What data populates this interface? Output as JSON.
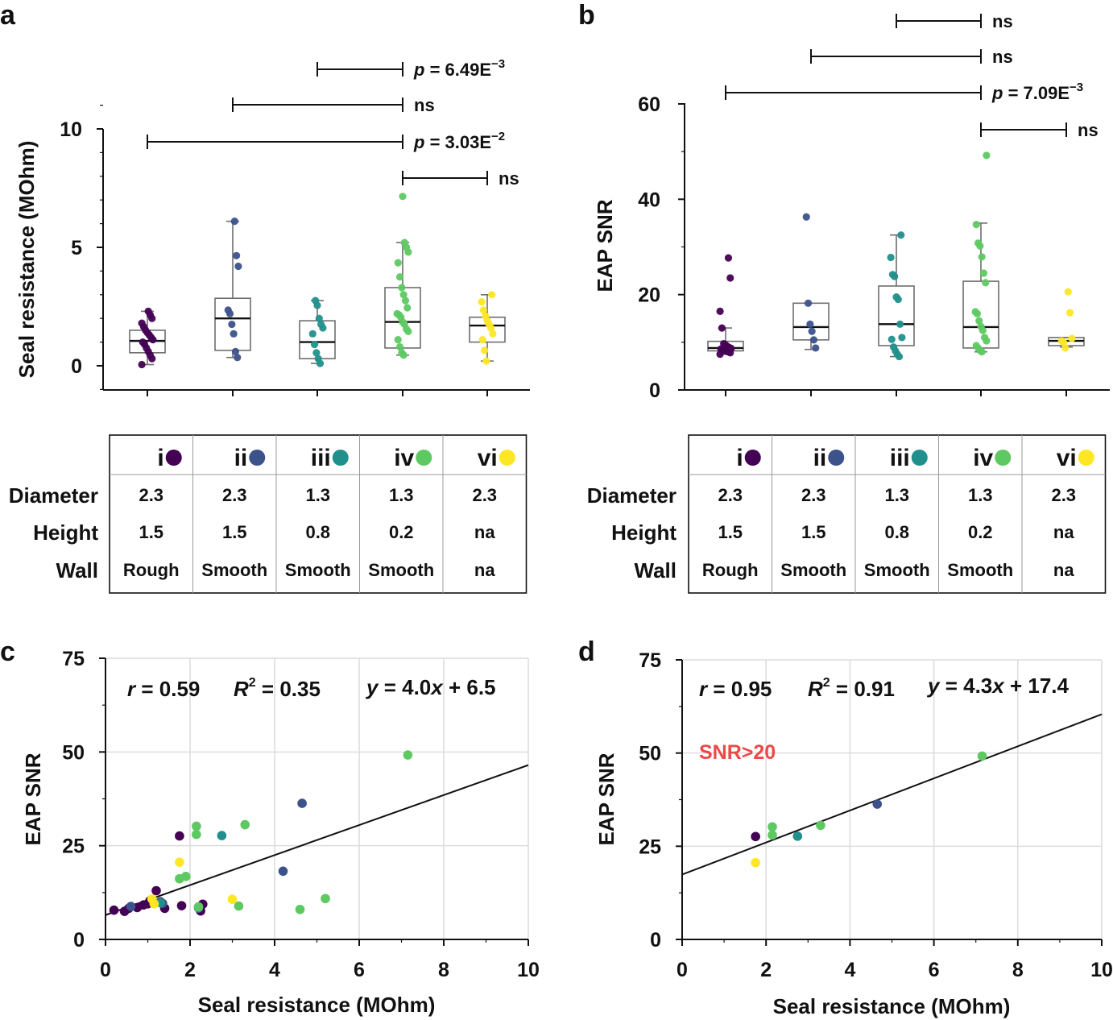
{
  "panel_letters": [
    "a",
    "b",
    "c",
    "d"
  ],
  "groups": [
    {
      "key": "i",
      "color": "#440154"
    },
    {
      "key": "ii",
      "color": "#3b528b"
    },
    {
      "key": "iii",
      "color": "#21908c"
    },
    {
      "key": "iv",
      "color": "#5ec962"
    },
    {
      "key": "vi",
      "color": "#fde725"
    }
  ],
  "specs_table": {
    "row_labels": [
      "Diameter",
      "Height",
      "Wall"
    ],
    "rows": [
      [
        "2.3",
        "2.3",
        "1.3",
        "1.3",
        "2.3"
      ],
      [
        "1.5",
        "1.5",
        "0.8",
        "0.2",
        "na"
      ],
      [
        "Rough",
        "Smooth",
        "Smooth",
        "Smooth",
        "na"
      ]
    ]
  },
  "chart_data": [
    {
      "panel": "a",
      "type": "box",
      "ylabel": "Seal resistance (MOhm)",
      "ylim": [
        -1,
        11
      ],
      "yticks": [
        0,
        5,
        10
      ],
      "categories": [
        "i",
        "ii",
        "iii",
        "iv",
        "vi"
      ],
      "boxes": [
        {
          "whislo": 0.05,
          "q1": 0.55,
          "med": 1.05,
          "q3": 1.5,
          "whishi": 2.3
        },
        {
          "whislo": 0.35,
          "q1": 0.65,
          "med": 2.0,
          "q3": 2.85,
          "whishi": 6.1
        },
        {
          "whislo": 0.1,
          "q1": 0.3,
          "med": 1.0,
          "q3": 1.9,
          "whishi": 2.75
        },
        {
          "whislo": 0.45,
          "q1": 0.75,
          "med": 1.85,
          "q3": 3.3,
          "whishi": 5.2
        },
        {
          "whislo": 0.2,
          "q1": 1.0,
          "med": 1.7,
          "q3": 2.05,
          "whishi": 3.0
        }
      ],
      "points": [
        [
          0.05,
          0.3,
          0.45,
          0.6,
          0.75,
          0.9,
          1.0,
          1.1,
          1.2,
          1.3,
          1.4,
          1.5,
          1.65,
          1.8,
          2.0,
          2.15,
          2.3
        ],
        [
          0.35,
          0.6,
          1.35,
          1.75,
          2.2,
          2.35,
          4.2,
          4.65,
          6.1
        ],
        [
          0.1,
          0.3,
          0.55,
          0.9,
          1.35,
          1.6,
          1.75,
          2.0,
          2.55,
          2.75
        ],
        [
          0.45,
          0.55,
          0.8,
          1.1,
          1.45,
          1.55,
          1.75,
          1.85,
          2.05,
          2.15,
          2.2,
          2.45,
          2.75,
          3.0,
          3.3,
          3.75,
          4.35,
          4.8,
          5.0,
          5.2,
          7.15
        ],
        [
          0.2,
          0.65,
          1.1,
          1.35,
          1.6,
          1.75,
          1.9,
          2.1,
          2.35,
          2.7,
          3.0
        ]
      ],
      "brackets": [
        {
          "from": "iii",
          "to": "iv",
          "label": "p = 6.49E",
          "exp": "−3"
        },
        {
          "from": "ii",
          "to": "iv",
          "label": "ns",
          "exp": ""
        },
        {
          "from": "i",
          "to": "iv",
          "label": "p = 3.03E",
          "exp": "−2"
        },
        {
          "from": "iv",
          "to": "vi",
          "label": "ns",
          "exp": ""
        }
      ]
    },
    {
      "panel": "b",
      "type": "box",
      "ylabel": "EAP SNR",
      "ylim": [
        0,
        60
      ],
      "yticks": [
        0,
        20,
        40,
        60
      ],
      "categories": [
        "i",
        "ii",
        "iii",
        "iv",
        "vi"
      ],
      "boxes": [
        {
          "whislo": 7.5,
          "q1": 8.2,
          "med": 8.8,
          "q3": 10.2,
          "whishi": 13
        },
        {
          "whislo": 8.5,
          "q1": 10.5,
          "med": 13.2,
          "q3": 18.2,
          "whishi": 18.2
        },
        {
          "whislo": 7.0,
          "q1": 9.3,
          "med": 13.8,
          "q3": 21.8,
          "whishi": 32.5
        },
        {
          "whislo": 8.0,
          "q1": 8.8,
          "med": 13.2,
          "q3": 22.8,
          "whishi": 35.0
        },
        {
          "whislo": 9.0,
          "q1": 9.3,
          "med": 10.3,
          "q3": 11.0,
          "whishi": 11.0
        }
      ],
      "points": [
        [
          7.5,
          7.8,
          8.0,
          8.1,
          8.3,
          8.5,
          8.6,
          8.7,
          8.9,
          9.1,
          9.4,
          9.7,
          13.0,
          16.5,
          23.5,
          27.7
        ],
        [
          8.8,
          10.5,
          12.3,
          13.8,
          18.2,
          36.3
        ],
        [
          7.0,
          7.5,
          8.2,
          9.0,
          10.6,
          11.0,
          13.8,
          19.0,
          19.5,
          23.8,
          24.2,
          27.8,
          32.5
        ],
        [
          8.0,
          8.3,
          8.8,
          9.3,
          10.3,
          11.0,
          12.5,
          13.3,
          14.5,
          16.0,
          16.4,
          22.5,
          24.5,
          27.9,
          30.2,
          30.8,
          34.7,
          49.2
        ],
        [
          8.8,
          10.0,
          10.3,
          10.8,
          16.2,
          20.6
        ]
      ],
      "brackets": [
        {
          "from": "iii",
          "to": "iv",
          "label": "ns",
          "exp": ""
        },
        {
          "from": "ii",
          "to": "iv",
          "label": "ns",
          "exp": ""
        },
        {
          "from": "i",
          "to": "iv",
          "label": "p = 7.09E",
          "exp": "−3"
        },
        {
          "from": "iv",
          "to": "vi",
          "label": "ns",
          "exp": ""
        }
      ]
    },
    {
      "panel": "c",
      "type": "scatter",
      "xlabel": "Seal resistance (MOhm)",
      "ylabel": "EAP SNR",
      "xlim": [
        0,
        10
      ],
      "ylim": [
        0,
        75
      ],
      "xticks": [
        0,
        2,
        4,
        6,
        8,
        10
      ],
      "yticks": [
        0,
        25,
        50,
        75
      ],
      "stats": {
        "r": "0.59",
        "R2": "0.35",
        "eq_slope": "4.0",
        "eq_intercept": "6.5"
      },
      "fit": {
        "slope": 4.0,
        "intercept": 6.5
      },
      "note": "",
      "points": [
        {
          "x": 0.2,
          "y": 7.8,
          "g": 0
        },
        {
          "x": 0.45,
          "y": 7.5,
          "g": 0
        },
        {
          "x": 0.55,
          "y": 8.3,
          "g": 0
        },
        {
          "x": 0.75,
          "y": 8.5,
          "g": 0
        },
        {
          "x": 0.9,
          "y": 9.2,
          "g": 0
        },
        {
          "x": 1.0,
          "y": 9.5,
          "g": 0
        },
        {
          "x": 1.05,
          "y": 10.3,
          "g": 0
        },
        {
          "x": 1.2,
          "y": 13.0,
          "g": 0
        },
        {
          "x": 1.3,
          "y": 10.0,
          "g": 0
        },
        {
          "x": 1.4,
          "y": 8.3,
          "g": 0
        },
        {
          "x": 1.75,
          "y": 27.6,
          "g": 0
        },
        {
          "x": 1.8,
          "y": 9.0,
          "g": 0
        },
        {
          "x": 2.25,
          "y": 7.6,
          "g": 0
        },
        {
          "x": 2.3,
          "y": 9.4,
          "g": 0
        },
        {
          "x": 0.6,
          "y": 8.8,
          "g": 1
        },
        {
          "x": 1.35,
          "y": 9.6,
          "g": 1
        },
        {
          "x": 4.2,
          "y": 18.2,
          "g": 1
        },
        {
          "x": 4.65,
          "y": 36.3,
          "g": 1
        },
        {
          "x": 1.3,
          "y": 9.8,
          "g": 2
        },
        {
          "x": 2.2,
          "y": 8.4,
          "g": 2
        },
        {
          "x": 2.75,
          "y": 27.7,
          "g": 2
        },
        {
          "x": 1.75,
          "y": 16.2,
          "g": 3
        },
        {
          "x": 1.9,
          "y": 16.8,
          "g": 3
        },
        {
          "x": 2.15,
          "y": 28.0,
          "g": 3
        },
        {
          "x": 2.15,
          "y": 30.2,
          "g": 3
        },
        {
          "x": 2.2,
          "y": 8.7,
          "g": 3
        },
        {
          "x": 3.15,
          "y": 8.9,
          "g": 3
        },
        {
          "x": 3.3,
          "y": 30.6,
          "g": 3
        },
        {
          "x": 4.6,
          "y": 8.0,
          "g": 3
        },
        {
          "x": 5.2,
          "y": 10.9,
          "g": 3
        },
        {
          "x": 7.15,
          "y": 49.2,
          "g": 3
        },
        {
          "x": 1.1,
          "y": 10.8,
          "g": 4
        },
        {
          "x": 1.15,
          "y": 9.5,
          "g": 4
        },
        {
          "x": 1.75,
          "y": 20.6,
          "g": 4
        },
        {
          "x": 3.0,
          "y": 10.7,
          "g": 4
        }
      ]
    },
    {
      "panel": "d",
      "type": "scatter",
      "xlabel": "Seal resistance (MOhm)",
      "ylabel": "EAP SNR",
      "xlim": [
        0,
        10
      ],
      "ylim": [
        0,
        75
      ],
      "xticks": [
        0,
        2,
        4,
        6,
        8,
        10
      ],
      "yticks": [
        0,
        25,
        50,
        75
      ],
      "stats": {
        "r": "0.95",
        "R2": "0.91",
        "eq_slope": "4.3",
        "eq_intercept": "17.4"
      },
      "fit": {
        "slope": 4.3,
        "intercept": 17.4
      },
      "note": "SNR>20",
      "note_color": "#f04848",
      "points": [
        {
          "x": 1.75,
          "y": 27.6,
          "g": 0
        },
        {
          "x": 4.65,
          "y": 36.3,
          "g": 1
        },
        {
          "x": 2.75,
          "y": 27.7,
          "g": 2
        },
        {
          "x": 2.15,
          "y": 28.0,
          "g": 3
        },
        {
          "x": 2.15,
          "y": 30.2,
          "g": 3
        },
        {
          "x": 3.3,
          "y": 30.6,
          "g": 3
        },
        {
          "x": 7.15,
          "y": 49.2,
          "g": 3
        },
        {
          "x": 1.75,
          "y": 20.6,
          "g": 4
        }
      ]
    }
  ]
}
